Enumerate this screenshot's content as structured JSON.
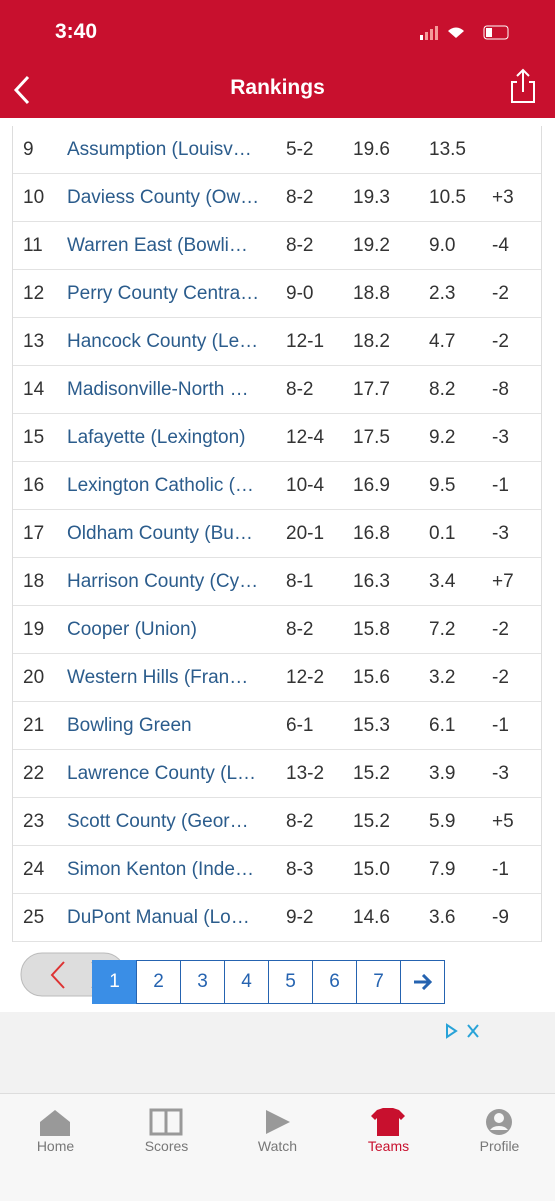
{
  "status_bar": {
    "time": "3:40"
  },
  "header": {
    "title": "Rankings"
  },
  "table": {
    "rows": [
      [
        "9",
        "Assumption (Louisv…",
        "5-2",
        "19.6",
        "13.5"
      ],
      [
        "10",
        "Daviess County (Ow…",
        "8-2",
        "19.3",
        "10.5",
        "+3"
      ],
      [
        "11",
        "Warren East (Bowli…",
        "8-2",
        "19.2",
        "9.0",
        "-4"
      ],
      [
        "12",
        "Perry County Centra…",
        "9-0",
        "18.8",
        "2.3",
        "-2"
      ],
      [
        "13",
        "Hancock County (Le…",
        "12-1",
        "18.2",
        "4.7",
        "-2"
      ],
      [
        "14",
        "Madisonville-North …",
        "8-2",
        "17.7",
        "8.2",
        "-8"
      ],
      [
        "15",
        "Lafayette (Lexington)",
        "12-4",
        "17.5",
        "9.2",
        "-3"
      ],
      [
        "16",
        "Lexington Catholic (…",
        "10-4",
        "16.9",
        "9.5",
        "-1"
      ],
      [
        "17",
        "Oldham County (Bu…",
        "20-1",
        "16.8",
        "0.1",
        "-3"
      ],
      [
        "18",
        "Harrison County (Cy…",
        "8-1",
        "16.3",
        "3.4",
        "+7"
      ],
      [
        "19",
        "Cooper (Union)",
        "8-2",
        "15.8",
        "7.2",
        "-2"
      ],
      [
        "20",
        "Western Hills (Fran…",
        "12-2",
        "15.6",
        "3.2",
        "-2"
      ],
      [
        "21",
        "Bowling Green",
        "6-1",
        "15.3",
        "6.1",
        "-1"
      ],
      [
        "22",
        "Lawrence County (L…",
        "13-2",
        "15.2",
        "3.9",
        "-3"
      ],
      [
        "23",
        "Scott County (Geor…",
        "8-2",
        "15.2",
        "5.9",
        "+5"
      ],
      [
        "24",
        "Simon Kenton (Inde…",
        "8-3",
        "15.0",
        "7.9",
        "-1"
      ],
      [
        "25",
        "DuPont Manual (Lo…",
        "9-2",
        "14.6",
        "3.6",
        "-9"
      ]
    ]
  },
  "pagination": {
    "pages": [
      "1",
      "2",
      "3",
      "4",
      "5",
      "6",
      "7"
    ]
  },
  "tab_bar": {
    "tabs": [
      "Home",
      "Scores",
      "Watch",
      "Teams",
      "Profile"
    ]
  }
}
